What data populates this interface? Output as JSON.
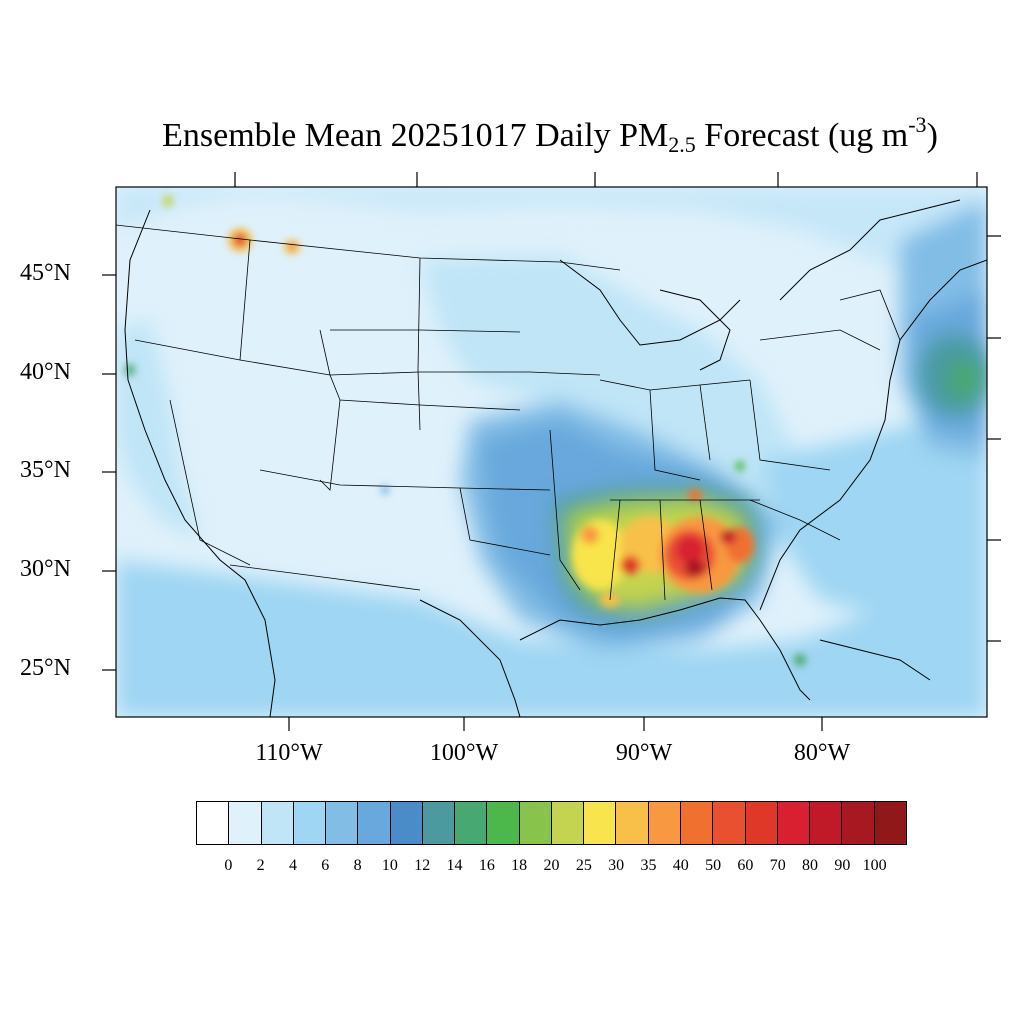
{
  "title": {
    "prefix": "Ensemble Mean 20251017 Daily PM",
    "subscript": "2.5",
    "middle": " Forecast (ug m",
    "superscript": "-3",
    "suffix": ")"
  },
  "map": {
    "projection": "lambert-conformal",
    "region": "CONUS",
    "background_color": "#dff1fb",
    "border_color": "#000000",
    "features": [
      "state-borders",
      "coastlines",
      "country-borders"
    ],
    "hotspots": [
      {
        "region": "Southeast US (Mississippi, Alabama, Georgia)",
        "level": "60-100"
      },
      {
        "region": "Louisiana / Gulf Coast",
        "level": "25-40"
      },
      {
        "region": "Northern Idaho / Montana",
        "level": "35-60"
      },
      {
        "region": "Western Atlantic",
        "level": "14-18"
      }
    ]
  },
  "lat_labels": [
    "45°N",
    "40°N",
    "35°N",
    "30°N",
    "25°N"
  ],
  "lon_labels": [
    "110°W",
    "100°W",
    "90°W",
    "80°W"
  ],
  "colorbar": {
    "labels": [
      "0",
      "2",
      "4",
      "6",
      "8",
      "10",
      "12",
      "14",
      "16",
      "18",
      "20",
      "25",
      "30",
      "35",
      "40",
      "50",
      "60",
      "70",
      "80",
      "90",
      "100"
    ],
    "colors": [
      "#ffffff",
      "#dff1fb",
      "#bfe5f7",
      "#9fd6f3",
      "#82bde6",
      "#68a8dc",
      "#4a8cc8",
      "#4a9aa0",
      "#48a872",
      "#4cb84c",
      "#88c44c",
      "#c4d450",
      "#f8e44c",
      "#f8c048",
      "#f89840",
      "#f07030",
      "#e85030",
      "#e03828",
      "#d82030",
      "#c01a28",
      "#a81820",
      "#901818"
    ]
  }
}
